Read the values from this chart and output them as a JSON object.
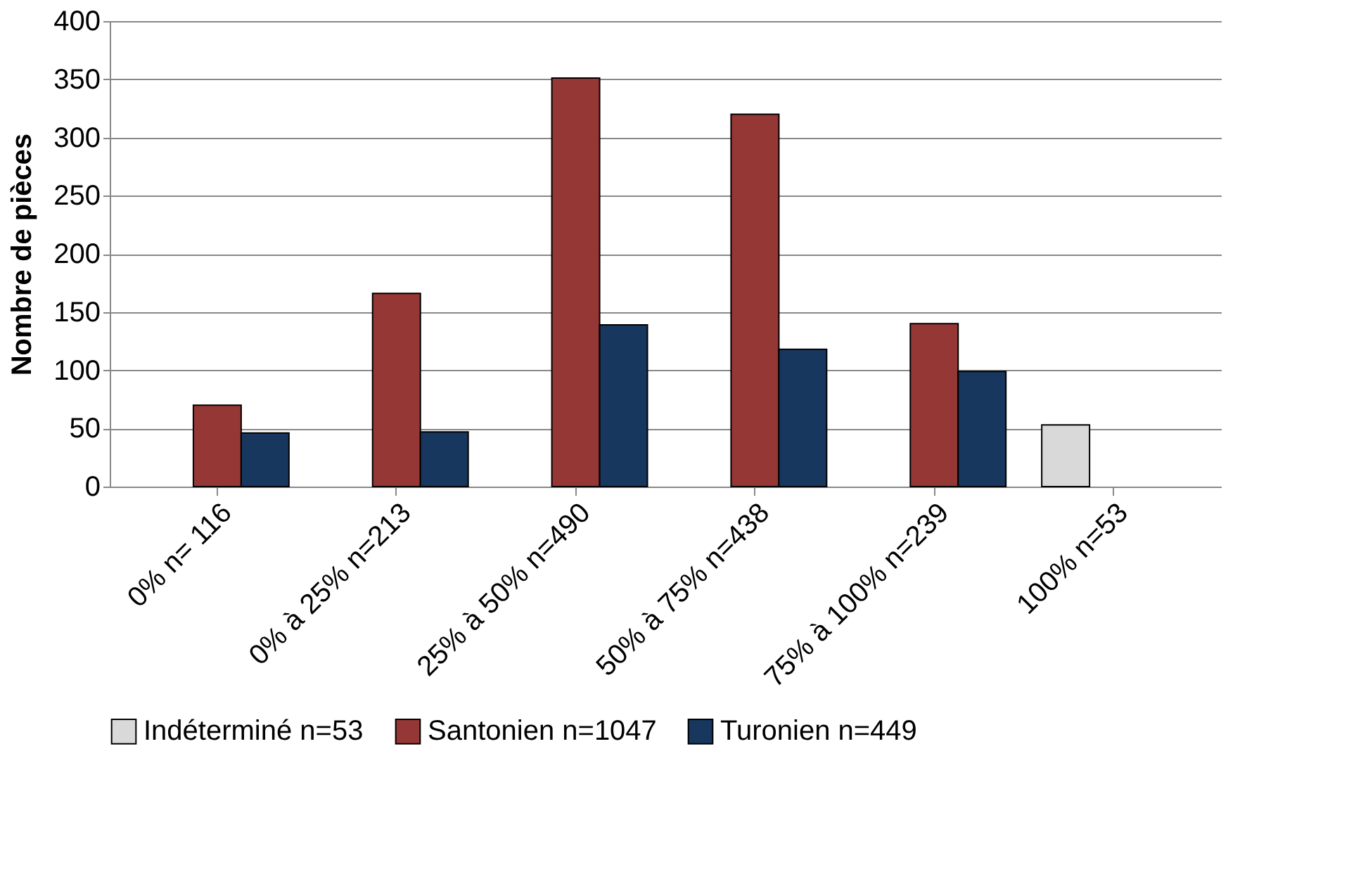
{
  "chart_data": {
    "type": "bar",
    "ylabel": "Nombre de pièces",
    "categories": [
      "0% n= 116",
      "0% à 25% n=213",
      "25% à 50% n=490",
      "50% à 75% n=438",
      "75% à 100% n=239",
      "100% n=53"
    ],
    "series": [
      {
        "name": "Indéterminé n=53",
        "color": "#d9d9d9",
        "values": [
          null,
          null,
          null,
          null,
          null,
          53
        ]
      },
      {
        "name": "Santonien n=1047",
        "color": "#953735",
        "values": [
          70,
          166,
          351,
          320,
          140,
          null
        ]
      },
      {
        "name": "Turonien n=449",
        "color": "#17375e",
        "values": [
          46,
          47,
          139,
          118,
          99,
          null
        ]
      }
    ],
    "ylim": [
      0,
      400
    ],
    "yticks": [
      0,
      50,
      100,
      150,
      200,
      250,
      300,
      350,
      400
    ],
    "grid": "y",
    "legend": "bottom"
  }
}
